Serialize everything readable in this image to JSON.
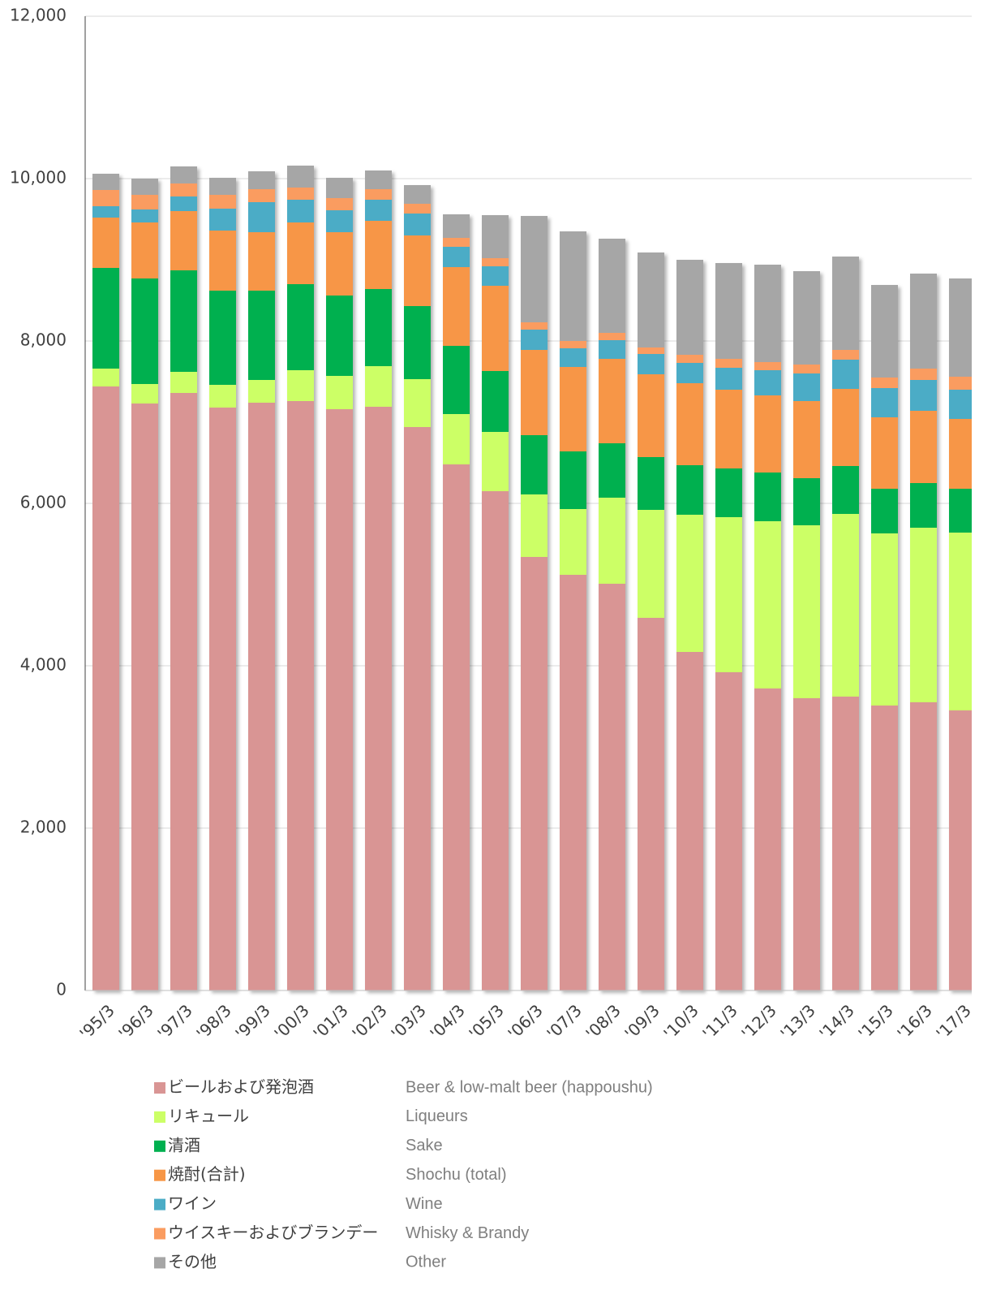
{
  "chart_data": {
    "type": "stacked_bar",
    "categories": [
      "'95/3",
      "'96/3",
      "'97/3",
      "'98/3",
      "'99/3",
      "'00/3",
      "'01/3",
      "'02/3",
      "'03/3",
      "'04/3",
      "'05/3",
      "'06/3",
      "'07/3",
      "'08/3",
      "'09/3",
      "'10/3",
      "'11/3",
      "'12/3",
      "'13/3",
      "'14/3",
      "'15/3",
      "'16/3",
      "'17/3"
    ],
    "series": [
      {
        "name": "ビールおよび発泡酒",
        "name_en": "Beer & low-malt beer (happoushu)",
        "color": "#d99594",
        "values": [
          7440,
          7230,
          7360,
          7180,
          7240,
          7260,
          7160,
          7190,
          6940,
          6480,
          6150,
          5340,
          5120,
          5010,
          4590,
          4170,
          3920,
          3720,
          3600,
          3620,
          3510,
          3550,
          3450
        ]
      },
      {
        "name": "リキュール",
        "name_en": "Liqueurs",
        "color": "#ccff66",
        "values": [
          220,
          240,
          260,
          280,
          280,
          380,
          410,
          500,
          590,
          620,
          730,
          770,
          810,
          1060,
          1330,
          1690,
          1910,
          2060,
          2130,
          2250,
          2120,
          2150,
          2190
        ]
      },
      {
        "name": "清酒",
        "name_en": "Sake",
        "color": "#00b050",
        "values": [
          1240,
          1300,
          1250,
          1160,
          1100,
          1060,
          990,
          950,
          900,
          840,
          750,
          730,
          710,
          670,
          650,
          610,
          600,
          600,
          580,
          590,
          550,
          550,
          540
        ]
      },
      {
        "name": "焼酎(合計)",
        "name_en": "Shochu (total)",
        "color": "#f79646",
        "values": [
          620,
          690,
          730,
          740,
          720,
          760,
          780,
          840,
          870,
          970,
          1050,
          1050,
          1040,
          1040,
          1020,
          1010,
          970,
          950,
          950,
          950,
          880,
          890,
          860
        ]
      },
      {
        "name": "ワイン",
        "name_en": "Wine",
        "color": "#4bacc6",
        "values": [
          140,
          160,
          180,
          270,
          370,
          280,
          270,
          260,
          270,
          250,
          240,
          250,
          230,
          230,
          250,
          250,
          270,
          310,
          340,
          360,
          360,
          380,
          360
        ]
      },
      {
        "name": "ウイスキーおよびブランデー",
        "name_en": "Whisky & Brandy",
        "color": "#fa9c60",
        "values": [
          200,
          180,
          160,
          170,
          160,
          150,
          150,
          130,
          120,
          110,
          100,
          90,
          90,
          90,
          80,
          100,
          110,
          100,
          110,
          120,
          130,
          140,
          160
        ]
      },
      {
        "name": "その他",
        "name_en": "Other",
        "color": "#a6a6a6",
        "values": [
          200,
          200,
          210,
          210,
          220,
          270,
          250,
          230,
          230,
          290,
          530,
          1310,
          1350,
          1160,
          1170,
          1170,
          1180,
          1200,
          1150,
          1150,
          1140,
          1170,
          1210
        ]
      }
    ],
    "ylim": [
      0,
      12000
    ],
    "yticks": [
      0,
      {
        "value": 2000,
        "label": "2,000"
      },
      {
        "value": 4000,
        "label": "4,000"
      },
      {
        "value": 6000,
        "label": "6,000"
      },
      {
        "value": 8000,
        "label": "8,000"
      },
      {
        "value": 10000,
        "label": "10,000"
      },
      {
        "value": 12000,
        "label": "12,000"
      }
    ],
    "grid": true
  }
}
